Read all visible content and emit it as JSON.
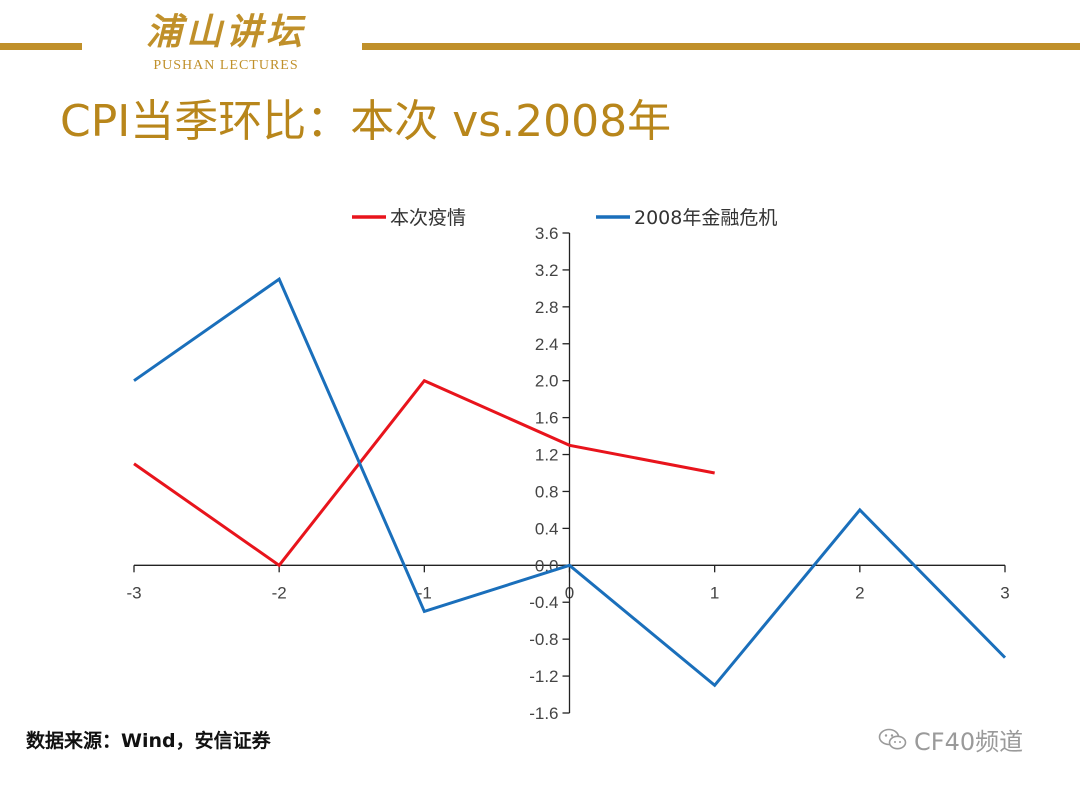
{
  "header": {
    "logo_cn": "浦山讲坛",
    "logo_en": "PUSHAN LECTURES",
    "title": "CPI当季环比：本次 vs.2008年"
  },
  "colors": {
    "gold": "#c0902a",
    "gold_text": "#b8861b",
    "red": "#e8141c",
    "blue": "#1a6fbb",
    "axis": "#222222"
  },
  "chart_data": {
    "type": "line",
    "x_ticks": [
      "-3",
      "-2",
      "-1",
      "0",
      "1",
      "2",
      "3"
    ],
    "y_ticks": [
      "3.6",
      "3.2",
      "2.8",
      "2.4",
      "2.0",
      "1.6",
      "1.2",
      "0.8",
      "0.4",
      "0.0",
      "-0.4",
      "-0.8",
      "-1.2",
      "-1.6"
    ],
    "xlim": [
      -3,
      3
    ],
    "ylim": [
      -1.6,
      3.6
    ],
    "legend_position": "top",
    "series": [
      {
        "name": "本次疫情",
        "color": "#e8141c",
        "x": [
          -3,
          -2,
          -1,
          0,
          1
        ],
        "y": [
          1.1,
          0.0,
          2.0,
          1.3,
          1.0
        ]
      },
      {
        "name": "2008年金融危机",
        "color": "#1a6fbb",
        "x": [
          -3,
          -2,
          -1,
          0,
          1,
          2,
          3
        ],
        "y": [
          2.0,
          3.1,
          -0.5,
          0.0,
          -1.3,
          0.6,
          -1.0
        ]
      }
    ]
  },
  "footer": {
    "source": "数据来源：Wind，安信证券",
    "watermark_icon": "wechat-icon",
    "watermark": "CF40频道"
  }
}
